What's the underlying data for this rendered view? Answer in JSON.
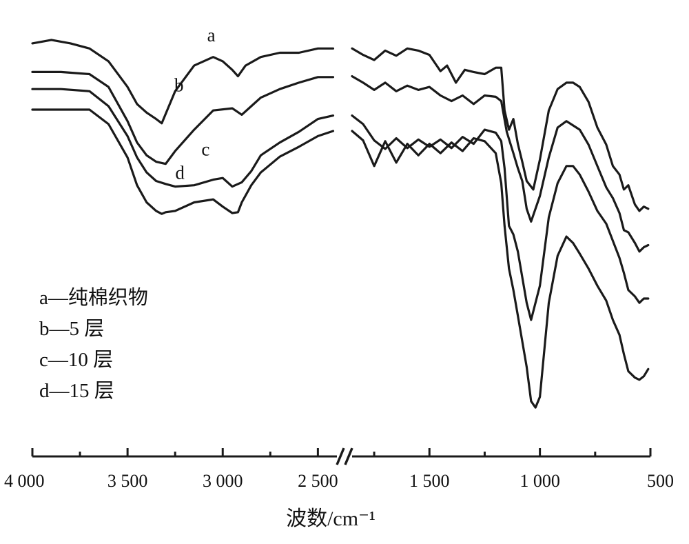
{
  "chart_data": {
    "type": "line",
    "title": "",
    "xlabel": "波数/cm⁻¹",
    "ylabel": "",
    "x_reversed": true,
    "x_break": [
      2400,
      1850
    ],
    "xlim_left": [
      4000,
      2400
    ],
    "xlim_right": [
      1850,
      500
    ],
    "ylim": [
      0,
      1
    ],
    "grid": false,
    "legend_position": "left-middle",
    "x_ticks": [
      {
        "value": 4000,
        "label": "4 000"
      },
      {
        "value": 3500,
        "label": "3 500"
      },
      {
        "value": 3000,
        "label": "3 000"
      },
      {
        "value": 2500,
        "label": "2 500"
      },
      {
        "value": 1500,
        "label": "1 500"
      },
      {
        "value": 1000,
        "label": "1 000"
      },
      {
        "value": 500,
        "label": "500"
      }
    ],
    "x_minor_ticks": [
      3750,
      3250,
      2750,
      1750,
      1250,
      750
    ],
    "legend": [
      {
        "key": "a",
        "text": "a—纯棉织物"
      },
      {
        "key": "b",
        "text": "b—5 层"
      },
      {
        "key": "c",
        "text": "c—10 层"
      },
      {
        "key": "d",
        "text": "d—15 层"
      }
    ],
    "series": [
      {
        "name": "a",
        "label_at": [
          3060,
          0.952
        ],
        "x": [
          4000,
          3900,
          3800,
          3700,
          3600,
          3500,
          3450,
          3400,
          3350,
          3320,
          3250,
          3150,
          3050,
          3000,
          2950,
          2920,
          2880,
          2800,
          2700,
          2600,
          2500,
          2420,
          1850,
          1800,
          1750,
          1700,
          1650,
          1600,
          1550,
          1500,
          1450,
          1420,
          1380,
          1340,
          1300,
          1250,
          1200,
          1175,
          1160,
          1140,
          1120,
          1100,
          1080,
          1060,
          1030,
          1000,
          960,
          920,
          880,
          850,
          820,
          780,
          740,
          700,
          670,
          640,
          620,
          600,
          570,
          550,
          530,
          510
        ],
        "y": [
          0.947,
          0.955,
          0.947,
          0.935,
          0.905,
          0.845,
          0.805,
          0.785,
          0.77,
          0.76,
          0.835,
          0.895,
          0.915,
          0.905,
          0.885,
          0.87,
          0.895,
          0.915,
          0.925,
          0.925,
          0.935,
          0.935,
          0.935,
          0.92,
          0.908,
          0.93,
          0.918,
          0.935,
          0.93,
          0.92,
          0.882,
          0.895,
          0.855,
          0.885,
          0.88,
          0.875,
          0.89,
          0.89,
          0.79,
          0.745,
          0.77,
          0.712,
          0.67,
          0.625,
          0.605,
          0.675,
          0.79,
          0.84,
          0.855,
          0.855,
          0.845,
          0.81,
          0.75,
          0.71,
          0.66,
          0.64,
          0.605,
          0.615,
          0.57,
          0.555,
          0.565,
          0.56
        ]
      },
      {
        "name": "b",
        "label_at": [
          3230,
          0.835
        ],
        "x": [
          4000,
          3850,
          3700,
          3600,
          3500,
          3450,
          3400,
          3350,
          3300,
          3250,
          3150,
          3050,
          2950,
          2900,
          2850,
          2800,
          2700,
          2600,
          2500,
          2420,
          1850,
          1800,
          1750,
          1700,
          1650,
          1600,
          1550,
          1500,
          1450,
          1400,
          1350,
          1300,
          1250,
          1200,
          1175,
          1150,
          1120,
          1100,
          1080,
          1060,
          1040,
          1000,
          960,
          920,
          880,
          850,
          820,
          780,
          740,
          700,
          670,
          640,
          620,
          600,
          570,
          550,
          530,
          510
        ],
        "y": [
          0.88,
          0.88,
          0.875,
          0.845,
          0.765,
          0.715,
          0.685,
          0.67,
          0.665,
          0.695,
          0.745,
          0.79,
          0.795,
          0.78,
          0.8,
          0.82,
          0.84,
          0.855,
          0.868,
          0.868,
          0.87,
          0.855,
          0.838,
          0.855,
          0.835,
          0.848,
          0.838,
          0.845,
          0.825,
          0.812,
          0.825,
          0.805,
          0.825,
          0.822,
          0.812,
          0.74,
          0.69,
          0.655,
          0.625,
          0.56,
          0.53,
          0.59,
          0.68,
          0.75,
          0.765,
          0.755,
          0.745,
          0.71,
          0.66,
          0.61,
          0.585,
          0.55,
          0.51,
          0.505,
          0.48,
          0.46,
          0.47,
          0.475
        ]
      },
      {
        "name": "c",
        "label_at": [
          3090,
          0.685
        ],
        "x": [
          4000,
          3850,
          3700,
          3600,
          3500,
          3450,
          3400,
          3350,
          3300,
          3250,
          3150,
          3050,
          3000,
          2950,
          2900,
          2850,
          2800,
          2700,
          2600,
          2500,
          2420,
          1850,
          1800,
          1750,
          1700,
          1650,
          1600,
          1550,
          1500,
          1450,
          1400,
          1350,
          1300,
          1250,
          1200,
          1175,
          1160,
          1140,
          1120,
          1100,
          1080,
          1060,
          1040,
          1000,
          960,
          920,
          880,
          850,
          820,
          780,
          740,
          700,
          670,
          640,
          620,
          600,
          570,
          550,
          530,
          510
        ],
        "y": [
          0.84,
          0.84,
          0.835,
          0.8,
          0.73,
          0.68,
          0.645,
          0.625,
          0.618,
          0.612,
          0.615,
          0.628,
          0.632,
          0.612,
          0.622,
          0.648,
          0.685,
          0.715,
          0.74,
          0.77,
          0.778,
          0.778,
          0.758,
          0.72,
          0.7,
          0.725,
          0.702,
          0.722,
          0.705,
          0.722,
          0.702,
          0.728,
          0.712,
          0.745,
          0.738,
          0.718,
          0.655,
          0.52,
          0.5,
          0.46,
          0.4,
          0.34,
          0.3,
          0.38,
          0.54,
          0.62,
          0.66,
          0.66,
          0.64,
          0.6,
          0.555,
          0.525,
          0.485,
          0.445,
          0.41,
          0.37,
          0.355,
          0.34,
          0.35,
          0.35
        ]
      },
      {
        "name": "d",
        "label_at": [
          3225,
          0.63
        ],
        "x": [
          4000,
          3850,
          3700,
          3600,
          3500,
          3450,
          3400,
          3350,
          3320,
          3300,
          3250,
          3150,
          3050,
          3000,
          2950,
          2920,
          2900,
          2850,
          2800,
          2700,
          2600,
          2500,
          2420,
          1850,
          1800,
          1750,
          1700,
          1650,
          1600,
          1550,
          1500,
          1450,
          1400,
          1350,
          1300,
          1250,
          1200,
          1175,
          1160,
          1140,
          1120,
          1100,
          1080,
          1060,
          1040,
          1020,
          1000,
          960,
          920,
          880,
          850,
          820,
          780,
          740,
          700,
          670,
          640,
          620,
          600,
          570,
          550,
          530,
          510
        ],
        "y": [
          0.792,
          0.792,
          0.792,
          0.758,
          0.68,
          0.615,
          0.575,
          0.555,
          0.548,
          0.552,
          0.555,
          0.575,
          0.582,
          0.565,
          0.55,
          0.552,
          0.575,
          0.615,
          0.645,
          0.682,
          0.705,
          0.73,
          0.742,
          0.742,
          0.72,
          0.66,
          0.718,
          0.668,
          0.712,
          0.685,
          0.712,
          0.69,
          0.715,
          0.695,
          0.725,
          0.718,
          0.69,
          0.62,
          0.52,
          0.42,
          0.37,
          0.31,
          0.25,
          0.19,
          0.11,
          0.095,
          0.12,
          0.34,
          0.45,
          0.495,
          0.48,
          0.455,
          0.42,
          0.38,
          0.345,
          0.3,
          0.265,
          0.22,
          0.18,
          0.165,
          0.16,
          0.168,
          0.185
        ]
      }
    ]
  }
}
